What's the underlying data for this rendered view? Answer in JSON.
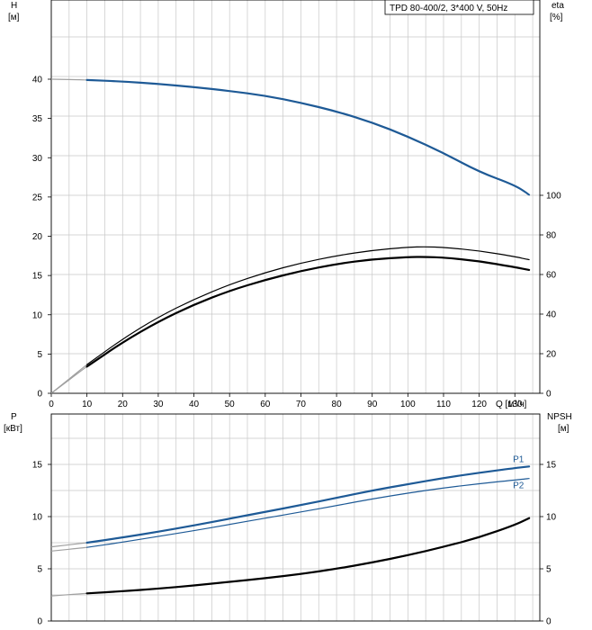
{
  "chart_data": [
    {
      "type": "line",
      "title_box": "TPD 80-400/2, 3*400 V, 50Hz",
      "xlabel": "Q [м³/ч]",
      "x_ticks": [
        0,
        10,
        20,
        30,
        40,
        50,
        60,
        70,
        80,
        90,
        100,
        110,
        120,
        130
      ],
      "xlim": [
        0,
        137
      ],
      "y_left": {
        "label_line1": "H",
        "label_line2": "[м]",
        "lim": [
          0,
          40
        ],
        "ticks": [
          0,
          5,
          10,
          15,
          20,
          25,
          30,
          35,
          40
        ]
      },
      "y_right": {
        "label_line1": "eta",
        "label_line2": "[%]",
        "lim": [
          0,
          100
        ],
        "ticks": [
          0,
          20,
          40,
          60,
          80,
          100
        ]
      },
      "grid": true,
      "series": [
        {
          "axis": "left",
          "color": "#1e5a96",
          "width": 2.2,
          "points": [
            [
              0,
              40
            ],
            [
              10,
              39.9
            ],
            [
              20,
              39.7
            ],
            [
              30,
              39.4
            ],
            [
              40,
              39.0
            ],
            [
              50,
              38.5
            ],
            [
              60,
              37.9
            ],
            [
              70,
              37.0
            ],
            [
              80,
              35.9
            ],
            [
              90,
              34.5
            ],
            [
              100,
              32.7
            ],
            [
              110,
              30.6
            ],
            [
              120,
              28.2
            ],
            [
              130,
              26.5
            ],
            [
              134,
              25.3
            ]
          ],
          "grey_until": 10
        },
        {
          "axis": "right",
          "color": "#000000",
          "width": 1.2,
          "points": [
            [
              0,
              0
            ],
            [
              10,
              14.5
            ],
            [
              20,
              27.5
            ],
            [
              30,
              38.5
            ],
            [
              40,
              47.5
            ],
            [
              50,
              55
            ],
            [
              60,
              61
            ],
            [
              70,
              65.8
            ],
            [
              80,
              69.5
            ],
            [
              90,
              72.2
            ],
            [
              100,
              73.8
            ],
            [
              105,
              74
            ],
            [
              110,
              73.7
            ],
            [
              120,
              72
            ],
            [
              130,
              69
            ],
            [
              134,
              67.5
            ]
          ],
          "grey_until": 10
        },
        {
          "axis": "right",
          "color": "#000000",
          "width": 2.2,
          "points": [
            [
              0,
              0
            ],
            [
              10,
              13.5
            ],
            [
              20,
              25.8
            ],
            [
              30,
              36.2
            ],
            [
              40,
              44.8
            ],
            [
              50,
              51.8
            ],
            [
              60,
              57.3
            ],
            [
              70,
              61.8
            ],
            [
              80,
              65.3
            ],
            [
              90,
              67.7
            ],
            [
              100,
              68.8
            ],
            [
              105,
              68.9
            ],
            [
              110,
              68.6
            ],
            [
              120,
              66.8
            ],
            [
              130,
              63.7
            ],
            [
              134,
              62.3
            ]
          ],
          "grey_until": 10
        }
      ]
    },
    {
      "type": "line",
      "y_left": {
        "label_line1": "P",
        "label_line2": "[кВт]",
        "lim": [
          0,
          18.5
        ],
        "ticks": [
          0,
          5,
          10,
          15
        ]
      },
      "y_right": {
        "label_line1": "NPSH",
        "label_line2": "[м]",
        "lim": [
          0,
          18.5
        ],
        "ticks": [
          0,
          5,
          10,
          15
        ]
      },
      "xlim": [
        0,
        137
      ],
      "x_ticks": [
        0,
        10,
        20,
        30,
        40,
        50,
        60,
        70,
        80,
        90,
        100,
        110,
        120,
        130
      ],
      "grid": true,
      "series": [
        {
          "name": "P1",
          "axis": "left",
          "color": "#1e5a96",
          "width": 2.2,
          "points": [
            [
              0,
              7.1
            ],
            [
              10,
              7.5
            ],
            [
              20,
              8.0
            ],
            [
              30,
              8.55
            ],
            [
              40,
              9.15
            ],
            [
              50,
              9.8
            ],
            [
              60,
              10.45
            ],
            [
              70,
              11.1
            ],
            [
              80,
              11.8
            ],
            [
              90,
              12.5
            ],
            [
              100,
              13.1
            ],
            [
              110,
              13.7
            ],
            [
              120,
              14.2
            ],
            [
              130,
              14.65
            ],
            [
              134,
              14.8
            ]
          ],
          "grey_until": 10
        },
        {
          "name": "P2",
          "axis": "left",
          "color": "#1e5a96",
          "width": 1.2,
          "points": [
            [
              0,
              6.7
            ],
            [
              10,
              7.05
            ],
            [
              20,
              7.55
            ],
            [
              30,
              8.1
            ],
            [
              40,
              8.65
            ],
            [
              50,
              9.25
            ],
            [
              60,
              9.85
            ],
            [
              70,
              10.45
            ],
            [
              80,
              11.05
            ],
            [
              90,
              11.7
            ],
            [
              100,
              12.25
            ],
            [
              110,
              12.75
            ],
            [
              120,
              13.15
            ],
            [
              130,
              13.5
            ],
            [
              134,
              13.65
            ]
          ],
          "grey_until": 10
        },
        {
          "axis": "right",
          "color": "#000000",
          "width": 2.2,
          "points": [
            [
              0,
              2.4
            ],
            [
              10,
              2.65
            ],
            [
              20,
              2.85
            ],
            [
              30,
              3.1
            ],
            [
              40,
              3.4
            ],
            [
              50,
              3.75
            ],
            [
              60,
              4.1
            ],
            [
              70,
              4.5
            ],
            [
              80,
              5.0
            ],
            [
              90,
              5.6
            ],
            [
              100,
              6.3
            ],
            [
              110,
              7.1
            ],
            [
              120,
              8.0
            ],
            [
              130,
              9.2
            ],
            [
              134,
              9.85
            ]
          ],
          "grey_until": 10
        }
      ]
    }
  ]
}
